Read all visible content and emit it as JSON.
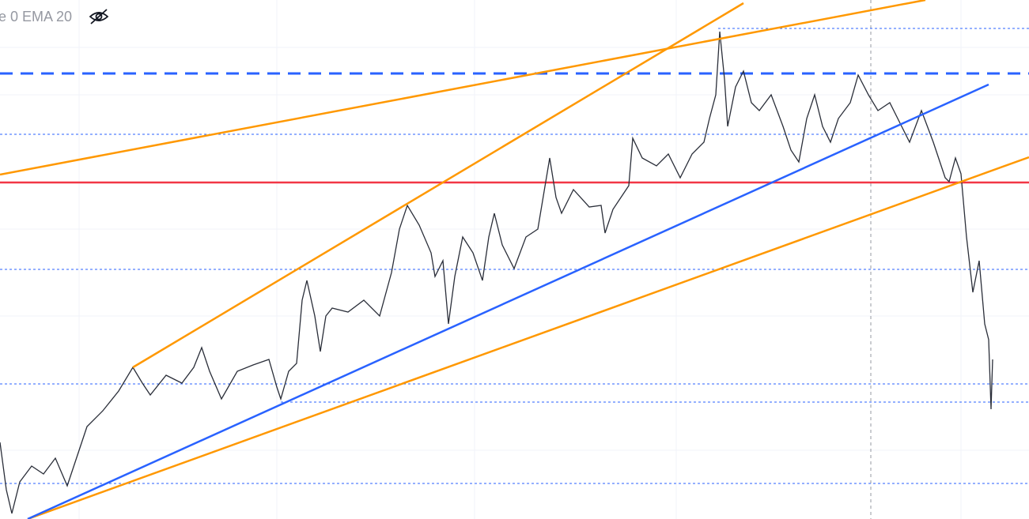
{
  "legend": {
    "text": "e 0 EMA 20"
  }
}
